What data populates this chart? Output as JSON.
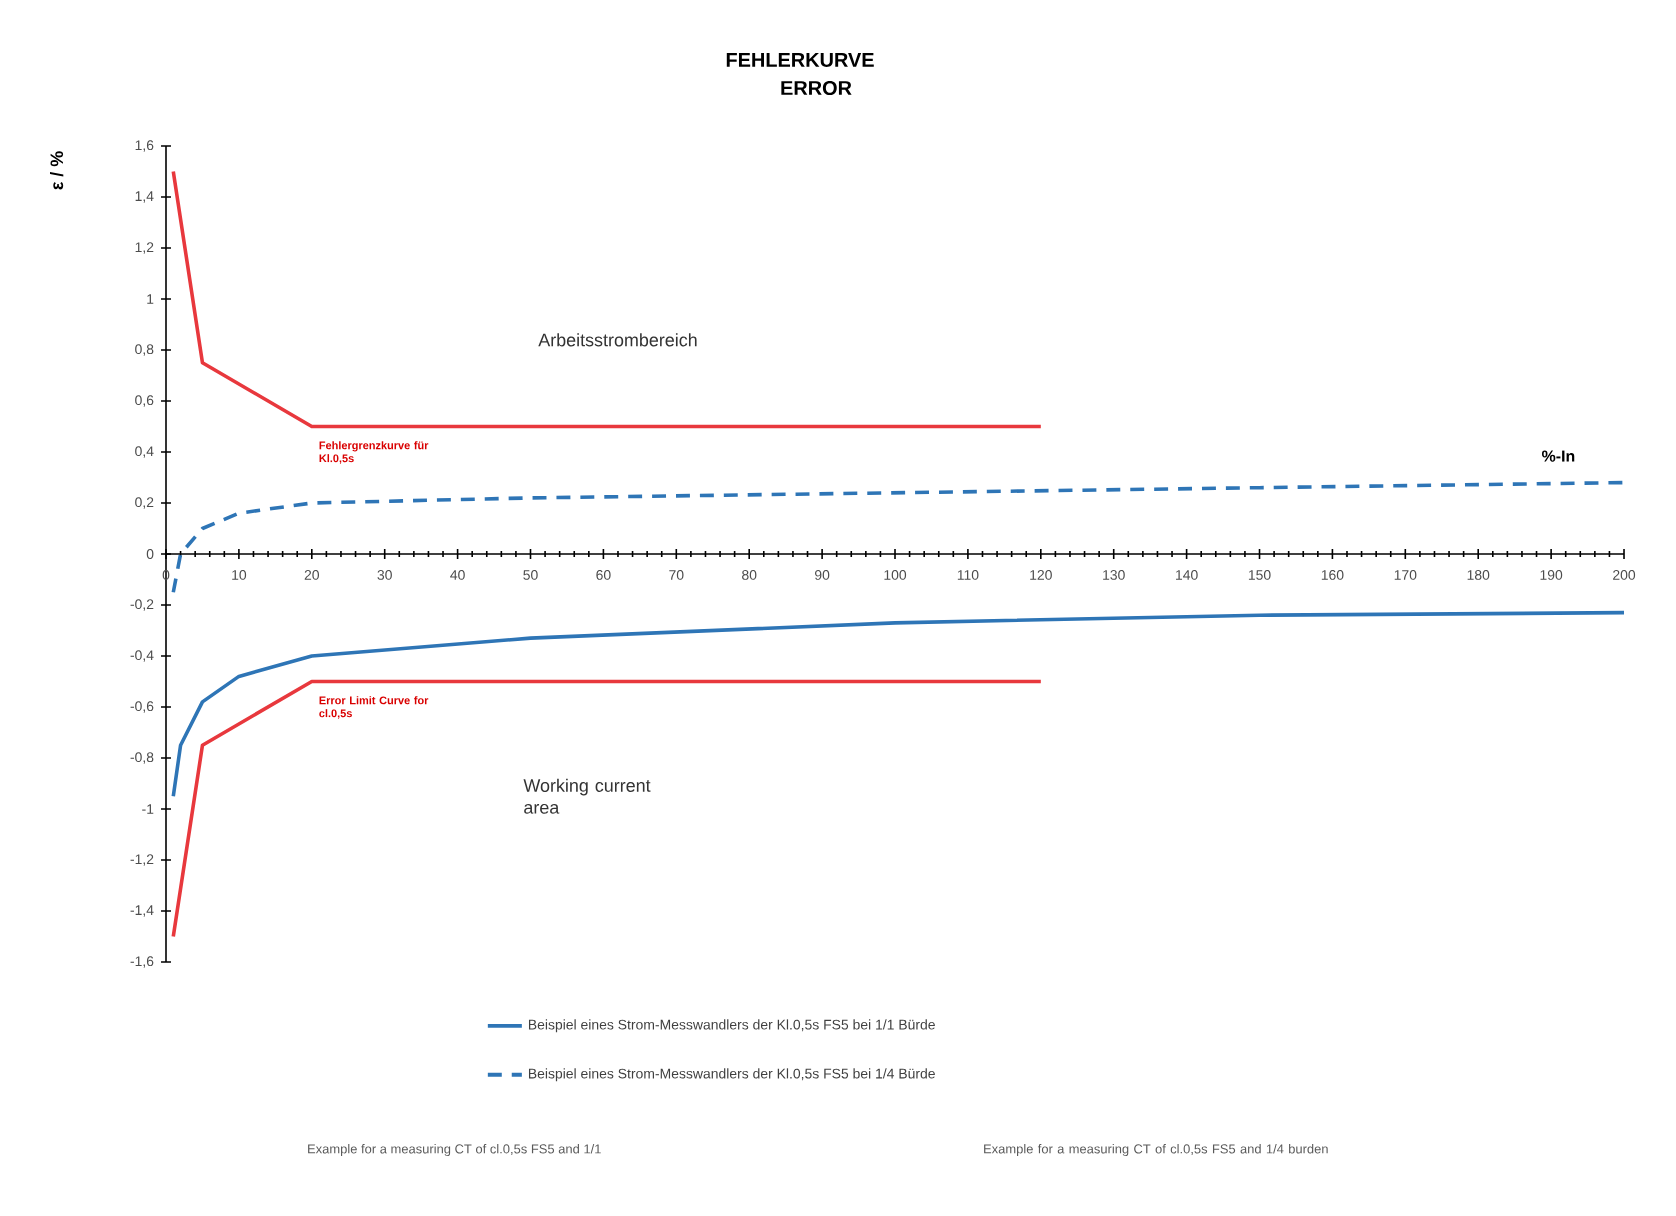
{
  "chart_data": {
    "type": "line",
    "title": "FEHLERKURVE",
    "subtitle": "ERROR",
    "xlabel": "%-In",
    "ylabel": "ε / %",
    "xlim": [
      0,
      200
    ],
    "ylim": [
      -1.6,
      1.6
    ],
    "xticks": [
      0,
      10,
      20,
      30,
      40,
      50,
      60,
      70,
      80,
      90,
      100,
      110,
      120,
      130,
      140,
      150,
      160,
      170,
      180,
      190,
      200
    ],
    "yticks": [
      {
        "value": -1.6,
        "label": "-1,6"
      },
      {
        "value": -1.4,
        "label": "-1,4"
      },
      {
        "value": -1.2,
        "label": "-1,2"
      },
      -1,
      {
        "value": -0.8,
        "label": "-0,8"
      },
      {
        "value": -0.6,
        "label": "-0,6"
      },
      {
        "value": -0.4,
        "label": "-0,4"
      },
      {
        "value": -0.2,
        "label": "-0,2"
      },
      0,
      {
        "value": 0.2,
        "label": "0,2"
      },
      {
        "value": 0.4,
        "label": "0,4"
      },
      {
        "value": 0.6,
        "label": "0,6"
      },
      {
        "value": 0.8,
        "label": "0,8"
      },
      1,
      {
        "value": 1.2,
        "label": "1,2"
      },
      {
        "value": 1.4,
        "label": "1,4"
      },
      {
        "value": 1.6,
        "label": "1,6"
      }
    ],
    "series": [
      {
        "color": "#e8383d",
        "x": [
          1,
          5,
          20,
          120
        ],
        "values": [
          1.5,
          0.75,
          0.5,
          0.5
        ]
      },
      {
        "color": "#e8383d",
        "x": [
          1,
          5,
          20,
          120
        ],
        "values": [
          -1.5,
          -0.75,
          -0.5,
          -0.5
        ]
      },
      {
        "name": "Beispiel eines Strom-Messwandlers der Kl.0,5s FS5 bei 1/1 Bürde",
        "color": "#2e75b6",
        "line_style": "solid",
        "x": [
          1,
          2,
          5,
          10,
          20,
          50,
          100,
          150,
          200
        ],
        "values": [
          -0.95,
          -0.75,
          -0.58,
          -0.48,
          -0.4,
          -0.33,
          -0.27,
          -0.24,
          -0.23
        ]
      },
      {
        "name": "Beispiel eines Strom-Messwandlers der Kl.0,5s FS5 bei 1/4 Bürde",
        "color": "#2e75b6",
        "line_style": "dashed",
        "x": [
          1,
          2,
          5,
          10,
          20,
          50,
          100,
          150,
          200
        ],
        "values": [
          -0.15,
          0,
          0.1,
          0.16,
          0.2,
          0.22,
          0.24,
          0.26,
          0.28
        ]
      }
    ],
    "legend": "bottom",
    "annotations": [
      "Arbeitsstrombereich",
      "Working current area",
      {
        "text": "Fehlergrenzkurve für Kl.0,5s",
        "x": 20,
        "y": 0.5
      },
      {
        "text": "Error Limit Curve for cl.0,5s",
        "x": 20,
        "y": -0.5
      },
      "Example for a measuring CT of cl.0,5s FS5 and 1/1",
      "Example for a measuring CT of cl.0,5s FS5 and 1/4 burden"
    ]
  }
}
